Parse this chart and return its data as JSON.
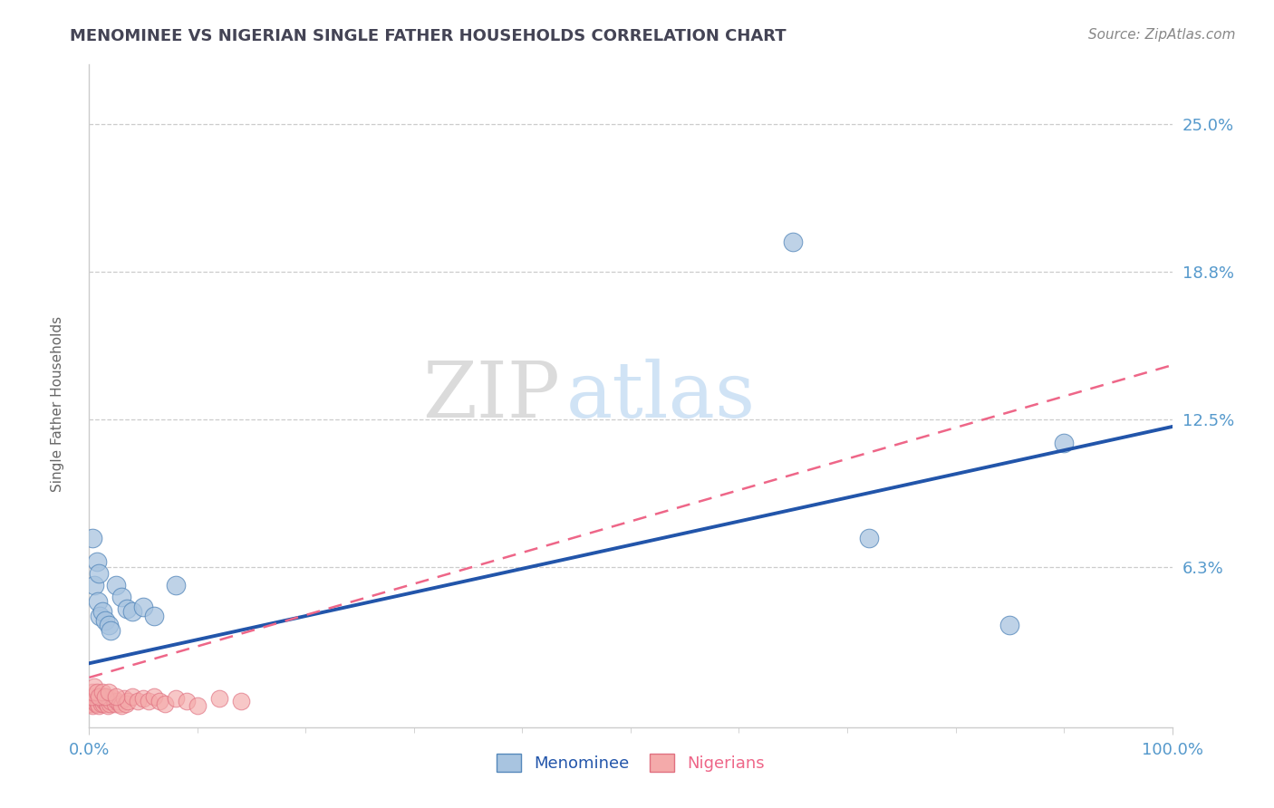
{
  "title": "MENOMINEE VS NIGERIAN SINGLE FATHER HOUSEHOLDS CORRELATION CHART",
  "source": "Source: ZipAtlas.com",
  "ylabel": "Single Father Households",
  "xlim": [
    0.0,
    1.0
  ],
  "ylim": [
    -0.005,
    0.275
  ],
  "ytick_vals": [
    0.0625,
    0.125,
    0.1875,
    0.25
  ],
  "ytick_labels": [
    "6.3%",
    "12.5%",
    "18.8%",
    "25.0%"
  ],
  "xtick_vals": [
    0.0,
    1.0
  ],
  "xtick_labels": [
    "0.0%",
    "100.0%"
  ],
  "watermark_zip": "ZIP",
  "watermark_atlas": "atlas",
  "blue_fill": "#A8C4E0",
  "blue_edge": "#5588BB",
  "blue_line": "#2255AA",
  "pink_fill": "#F4AAAA",
  "pink_edge": "#E07080",
  "pink_line": "#EE6688",
  "grid_color": "#CCCCCC",
  "text_color": "#5599CC",
  "title_color": "#444455",
  "source_color": "#888888",
  "ylabel_color": "#666666",
  "menominee_x": [
    0.005,
    0.008,
    0.01,
    0.012,
    0.015,
    0.018,
    0.02,
    0.025,
    0.03,
    0.035,
    0.04,
    0.05,
    0.06,
    0.08,
    0.72,
    0.85,
    0.9,
    0.003,
    0.007,
    0.009,
    0.65
  ],
  "menominee_y": [
    0.055,
    0.048,
    0.042,
    0.044,
    0.04,
    0.038,
    0.036,
    0.055,
    0.05,
    0.045,
    0.044,
    0.046,
    0.042,
    0.055,
    0.075,
    0.038,
    0.115,
    0.075,
    0.065,
    0.06,
    0.2
  ],
  "nigerian_x": [
    0.001,
    0.002,
    0.003,
    0.004,
    0.005,
    0.006,
    0.007,
    0.008,
    0.009,
    0.01,
    0.011,
    0.012,
    0.013,
    0.014,
    0.015,
    0.016,
    0.017,
    0.018,
    0.019,
    0.02,
    0.022,
    0.024,
    0.026,
    0.028,
    0.03,
    0.032,
    0.034,
    0.036,
    0.04,
    0.045,
    0.05,
    0.055,
    0.06,
    0.065,
    0.07,
    0.08,
    0.09,
    0.1,
    0.12,
    0.14,
    0.002,
    0.003,
    0.005,
    0.007,
    0.009,
    0.012,
    0.015,
    0.018,
    0.025
  ],
  "nigerian_y": [
    0.005,
    0.005,
    0.004,
    0.006,
    0.007,
    0.005,
    0.008,
    0.005,
    0.004,
    0.007,
    0.005,
    0.008,
    0.005,
    0.006,
    0.008,
    0.005,
    0.004,
    0.007,
    0.005,
    0.006,
    0.007,
    0.005,
    0.006,
    0.005,
    0.004,
    0.007,
    0.005,
    0.006,
    0.008,
    0.006,
    0.007,
    0.006,
    0.008,
    0.006,
    0.005,
    0.007,
    0.006,
    0.004,
    0.007,
    0.006,
    0.008,
    0.01,
    0.012,
    0.01,
    0.008,
    0.01,
    0.008,
    0.01,
    0.008
  ],
  "blue_line_x0": 0.0,
  "blue_line_y0": 0.022,
  "blue_line_x1": 1.0,
  "blue_line_y1": 0.122,
  "pink_line_x0": 0.0,
  "pink_line_y0": 0.016,
  "pink_line_x1": 1.0,
  "pink_line_y1": 0.148
}
